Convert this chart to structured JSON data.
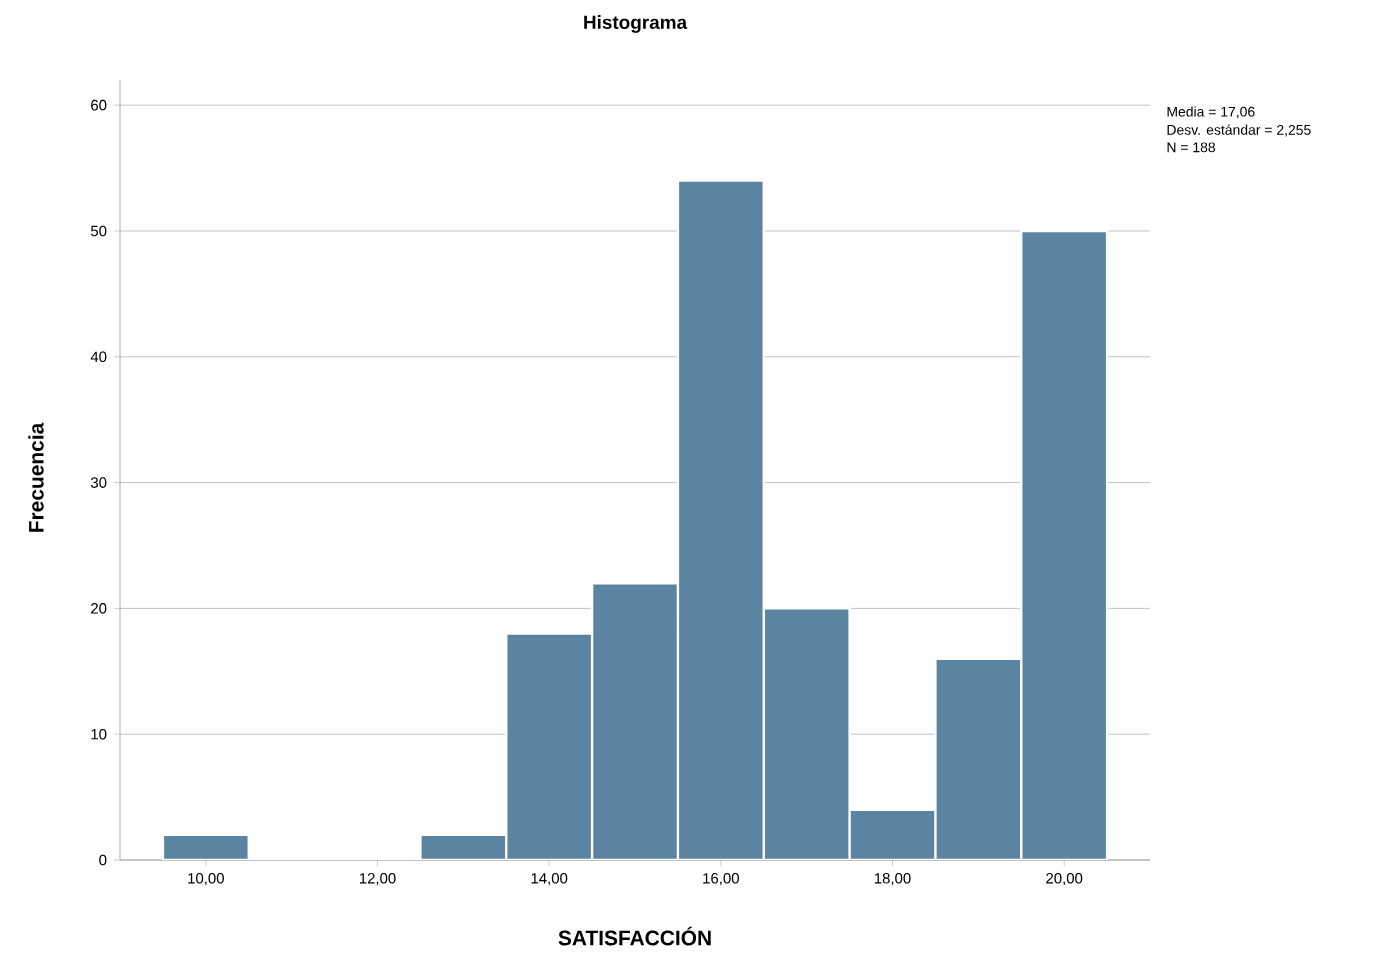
{
  "chart_data": {
    "type": "histogram",
    "title": "Histograma",
    "xlabel": "SATISFACCIÓN",
    "ylabel": "Frecuencia",
    "bins": [
      9.5,
      10.5,
      11.5,
      12.5,
      13.5,
      14.5,
      15.5,
      16.5,
      17.5,
      18.5,
      19.5,
      20.5
    ],
    "values": [
      2,
      0,
      0,
      2,
      18,
      22,
      54,
      20,
      4,
      16,
      50
    ],
    "color": "#5a84a2",
    "xlim": [
      9,
      21
    ],
    "ylim": [
      0,
      62
    ],
    "xticks": [
      {
        "value": 10,
        "label": "10,00"
      },
      {
        "value": 12,
        "label": "12,00"
      },
      {
        "value": 14,
        "label": "14,00"
      },
      {
        "value": 16,
        "label": "16,00"
      },
      {
        "value": 18,
        "label": "18,00"
      },
      {
        "value": 20,
        "label": "20,00"
      }
    ],
    "yticks": [
      0,
      10,
      20,
      30,
      40,
      50,
      60
    ],
    "grid": "y",
    "annotations": [
      "Media = 17,06",
      "Desv. estándar = 2,255",
      "N = 188"
    ]
  }
}
